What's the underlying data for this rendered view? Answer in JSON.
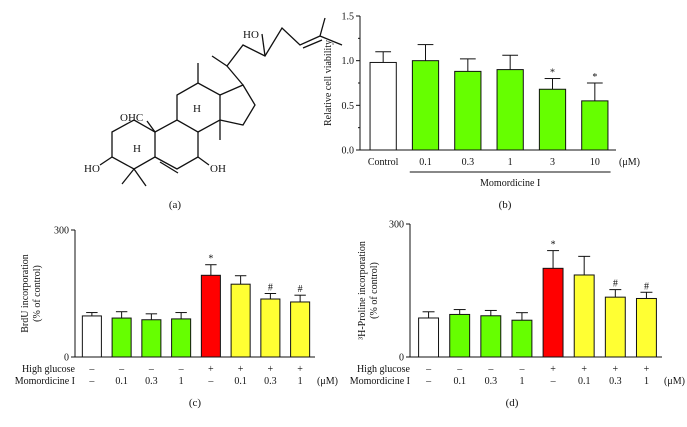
{
  "figure": {
    "panel_labels": [
      "(a)",
      "(b)",
      "(c)",
      "(d)"
    ]
  },
  "molecule": {
    "labels": [
      "HO",
      "OHC",
      "H",
      "H",
      "HO",
      "OH"
    ]
  },
  "colors": {
    "control": "#ffffff",
    "treated": "#66ff00",
    "high_glucose": "#ff0000",
    "high_glucose_treated": "#ffff33",
    "stroke": "#111111"
  },
  "chart_data": [
    {
      "panel": "(b)",
      "type": "bar",
      "categories": [
        "Control",
        "0.1",
        "0.3",
        "1",
        "3",
        "10"
      ],
      "values": [
        0.98,
        1.0,
        0.88,
        0.9,
        0.68,
        0.55
      ],
      "errors": [
        0.12,
        0.18,
        0.14,
        0.16,
        0.12,
        0.2
      ],
      "significance": [
        "",
        "",
        "",
        "",
        "*",
        "*"
      ],
      "bar_colors": [
        "control",
        "treated",
        "treated",
        "treated",
        "treated",
        "treated"
      ],
      "ylabel": "Relative cell viability",
      "ylim": [
        0,
        1.5
      ],
      "yticks": [
        "0.0",
        "0.5",
        "1.0",
        "1.5"
      ],
      "unit": "(μM)",
      "group_label": "Momordicine I"
    },
    {
      "panel": "(c)",
      "type": "bar",
      "values": [
        97,
        92,
        88,
        90,
        193,
        172,
        137,
        130
      ],
      "errors": [
        8,
        15,
        14,
        15,
        25,
        20,
        13,
        16
      ],
      "significance": [
        "",
        "",
        "",
        "",
        "*",
        "",
        "#",
        "#"
      ],
      "bar_colors": [
        "control",
        "treated",
        "treated",
        "treated",
        "high_glucose",
        "high_glucose_treated",
        "high_glucose_treated",
        "high_glucose_treated"
      ],
      "ylabel_lines": [
        "BrdU incorporation",
        "(% of control)"
      ],
      "ylim": [
        0,
        300
      ],
      "yticks": [
        "0",
        "300"
      ],
      "rows": [
        {
          "label": "High glucose",
          "cells": [
            "–",
            "–",
            "–",
            "–",
            "+",
            "+",
            "+",
            "+"
          ]
        },
        {
          "label": "Momordicine I",
          "cells": [
            "–",
            "0.1",
            "0.3",
            "1",
            "–",
            "0.1",
            "0.3",
            "1"
          ]
        }
      ],
      "unit": "(μM)"
    },
    {
      "panel": "(d)",
      "type": "bar",
      "values": [
        88,
        96,
        93,
        83,
        200,
        185,
        135,
        132
      ],
      "errors": [
        14,
        11,
        12,
        17,
        40,
        42,
        17,
        14
      ],
      "significance": [
        "",
        "",
        "",
        "",
        "*",
        "",
        "#",
        "#"
      ],
      "bar_colors": [
        "control",
        "treated",
        "treated",
        "treated",
        "high_glucose",
        "high_glucose_treated",
        "high_glucose_treated",
        "high_glucose_treated"
      ],
      "ylabel_lines": [
        "³H-Proline incorporation",
        "(% of control)"
      ],
      "ylim": [
        0,
        300
      ],
      "yticks": [
        "0",
        "300"
      ],
      "rows": [
        {
          "label": "High glucose",
          "cells": [
            "–",
            "–",
            "–",
            "–",
            "+",
            "+",
            "+",
            "+"
          ]
        },
        {
          "label": "Momordicine I",
          "cells": [
            "–",
            "0.1",
            "0.3",
            "1",
            "–",
            "0.1",
            "0.3",
            "1"
          ]
        }
      ],
      "unit": "(μM)"
    }
  ]
}
